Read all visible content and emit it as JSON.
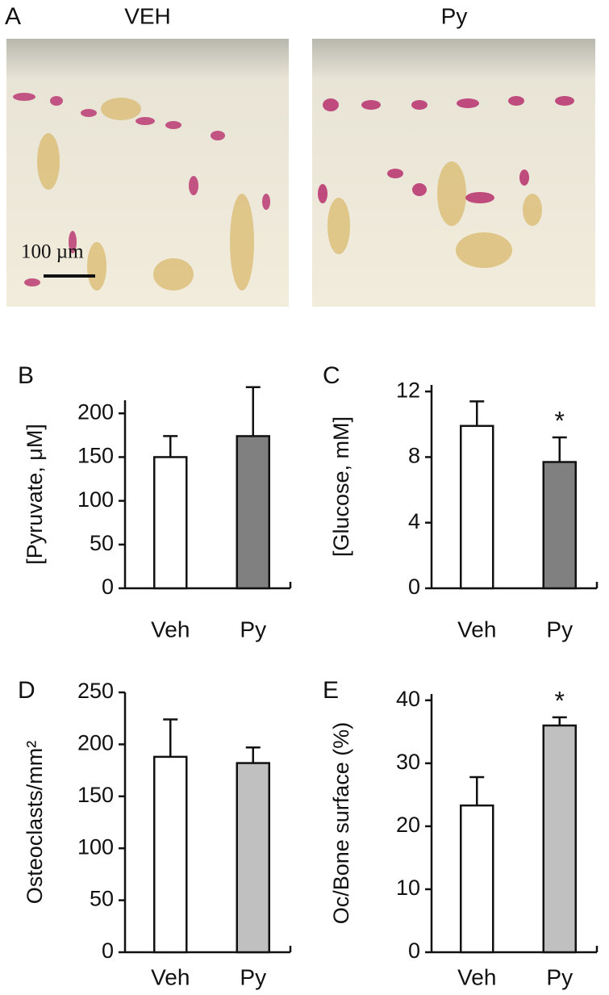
{
  "panel_a": {
    "label": "A",
    "titles": [
      "VEH",
      "Py"
    ],
    "scale_bar": "100 µm"
  },
  "chart_data": [
    {
      "type": "bar",
      "panel": "B",
      "ylabel": "[Pyruvate, μM]",
      "categories": [
        "Veh",
        "Py"
      ],
      "values": [
        150,
        174
      ],
      "errors": [
        24,
        56
      ],
      "colors": [
        "#ffffff",
        "#808080"
      ],
      "significance": [
        null,
        null
      ],
      "ylim": [
        0,
        215
      ],
      "yticks": [
        0,
        50,
        100,
        150,
        200
      ]
    },
    {
      "type": "bar",
      "panel": "C",
      "ylabel": "[Glucose, mM]",
      "categories": [
        "Veh",
        "Py"
      ],
      "values": [
        9.9,
        7.7
      ],
      "errors": [
        1.5,
        1.5
      ],
      "colors": [
        "#ffffff",
        "#808080"
      ],
      "significance": [
        null,
        "*"
      ],
      "ylim": [
        0,
        12.4
      ],
      "yticks": [
        0,
        4,
        8,
        12
      ]
    },
    {
      "type": "bar",
      "panel": "D",
      "ylabel": "Osteoclasts/mm²",
      "categories": [
        "Veh",
        "Py"
      ],
      "values": [
        188,
        182
      ],
      "errors": [
        36,
        15
      ],
      "colors": [
        "#ffffff",
        "#c0c0c0"
      ],
      "significance": [
        null,
        null
      ],
      "ylim": [
        0,
        250
      ],
      "yticks": [
        0,
        50,
        100,
        150,
        200,
        250
      ]
    },
    {
      "type": "bar",
      "panel": "E",
      "ylabel": "Oc/Bone surface (%)",
      "categories": [
        "Veh",
        "Py"
      ],
      "values": [
        23.3,
        36
      ],
      "errors": [
        4.5,
        1.3
      ],
      "colors": [
        "#ffffff",
        "#c0c0c0"
      ],
      "significance": [
        null,
        "*"
      ],
      "ylim": [
        0,
        41
      ],
      "yticks": [
        0,
        10,
        20,
        30,
        40
      ]
    }
  ]
}
